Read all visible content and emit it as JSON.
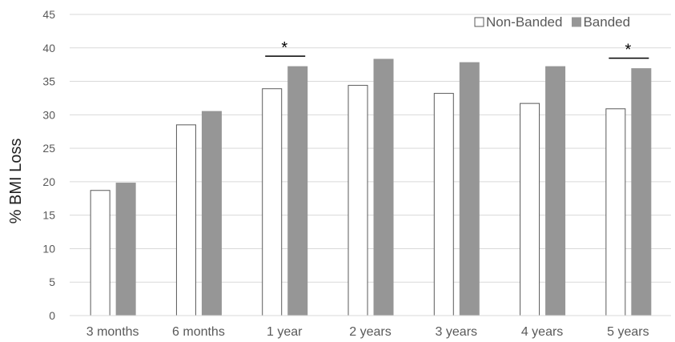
{
  "chart_data": {
    "type": "bar",
    "title": "",
    "xlabel": "",
    "ylabel": "% BMI Loss",
    "ylim": [
      0,
      45
    ],
    "y_ticks": [
      0,
      5,
      10,
      15,
      20,
      25,
      30,
      35,
      40,
      45
    ],
    "grid": true,
    "legend_position": "top-right",
    "categories": [
      "3 months",
      "6 months",
      "1 year",
      "2 years",
      "3 years",
      "4 years",
      "5 years"
    ],
    "series": [
      {
        "name": "Non-Banded",
        "values": [
          18.7,
          28.5,
          33.9,
          34.4,
          33.2,
          31.7,
          30.9
        ],
        "fill": "#ffffff",
        "stroke": "#595959"
      },
      {
        "name": "Banded",
        "values": [
          19.8,
          30.5,
          37.2,
          38.3,
          37.8,
          37.2,
          36.9
        ],
        "fill": "#969696",
        "stroke": "#969696"
      }
    ],
    "significance": [
      {
        "category": "1 year",
        "label": "*"
      },
      {
        "category": "5 years",
        "label": "*"
      }
    ]
  }
}
